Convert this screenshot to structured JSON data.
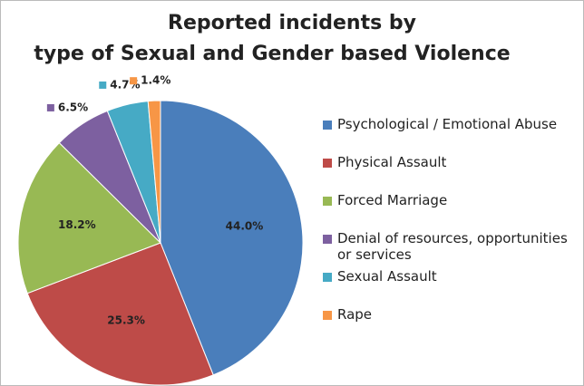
{
  "chart_data": {
    "type": "pie",
    "title": [
      "Reported incidents by",
      "type of Sexual and Gender based Violence"
    ],
    "categories": [
      "Psychological / Emotional Abuse",
      "Physical Assault",
      "Forced Marriage",
      "Denial of resources, opportunities or services",
      "Sexual Assault",
      "Rape"
    ],
    "values": [
      44.0,
      25.3,
      18.2,
      6.5,
      4.7,
      1.4
    ],
    "value_labels": [
      "44.0%",
      "25.3%",
      "18.2%",
      "6.5%",
      "4.7%",
      "1.4%"
    ],
    "colors": [
      "#4a7ebb",
      "#be4b48",
      "#98b954",
      "#7d60a0",
      "#46aac5",
      "#f79646"
    ],
    "legend": "right"
  }
}
